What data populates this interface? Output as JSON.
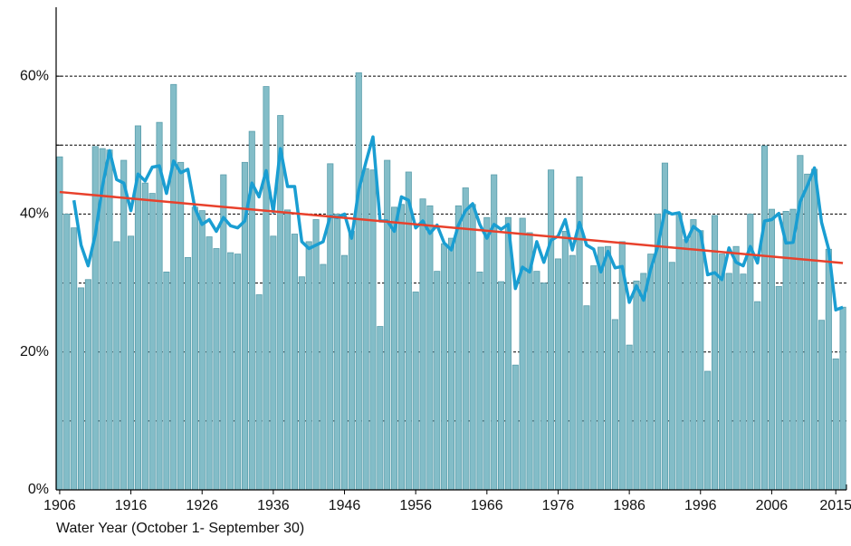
{
  "chart_data": {
    "type": "bar",
    "x_label": "Water Year (October 1- September 30)",
    "x": [
      1906,
      1907,
      1908,
      1909,
      1910,
      1911,
      1912,
      1913,
      1914,
      1915,
      1916,
      1917,
      1918,
      1919,
      1920,
      1921,
      1922,
      1923,
      1924,
      1925,
      1926,
      1927,
      1928,
      1929,
      1930,
      1931,
      1932,
      1933,
      1934,
      1935,
      1936,
      1937,
      1938,
      1939,
      1940,
      1941,
      1942,
      1943,
      1944,
      1945,
      1946,
      1947,
      1948,
      1949,
      1950,
      1951,
      1952,
      1953,
      1954,
      1955,
      1956,
      1957,
      1958,
      1959,
      1960,
      1961,
      1962,
      1963,
      1964,
      1965,
      1966,
      1967,
      1968,
      1969,
      1970,
      1971,
      1972,
      1973,
      1974,
      1975,
      1976,
      1977,
      1978,
      1979,
      1980,
      1981,
      1982,
      1983,
      1984,
      1985,
      1986,
      1987,
      1988,
      1989,
      1990,
      1991,
      1992,
      1993,
      1994,
      1995,
      1996,
      1997,
      1998,
      1999,
      2000,
      2001,
      2002,
      2003,
      2004,
      2005,
      2006,
      2007,
      2008,
      2009,
      2010,
      2011,
      2012,
      2013,
      2014,
      2015,
      2016
    ],
    "values": [
      48.3,
      40,
      38,
      29.3,
      30.5,
      49.8,
      49.5,
      49.3,
      36,
      47.8,
      36.8,
      52.8,
      44.5,
      43,
      53.3,
      31.6,
      58.8,
      47.5,
      33.7,
      41,
      40.5,
      36.7,
      35,
      45.7,
      34.4,
      34.2,
      47.5,
      52,
      28.3,
      58.5,
      36.8,
      54.3,
      40.6,
      37.1,
      30.9,
      36,
      39.2,
      32.7,
      47.3,
      40,
      34,
      37.5,
      60.5,
      46.6,
      46.4,
      23.7,
      47.8,
      41,
      41.4,
      46.1,
      28.7,
      42.2,
      41.2,
      31.7,
      35.7,
      36.5,
      41.2,
      43.8,
      41.4,
      31.6,
      39.5,
      45.7,
      30.2,
      39.5,
      18.1,
      39.4,
      37.3,
      31.7,
      30,
      46.4,
      33.5,
      37.5,
      34,
      45.4,
      26.7,
      32.5,
      35.2,
      35.3,
      24.7,
      36,
      21,
      30.3,
      31.4,
      34.2,
      40,
      47.4,
      33,
      40.1,
      36.3,
      39.2,
      37.6,
      17.2,
      39.8,
      34.2,
      31.4,
      35.3,
      31.3,
      40,
      27.3,
      49.9,
      40.7,
      29.5,
      40.4,
      40.7,
      48.5,
      45.8,
      46.5,
      24.6,
      34.9,
      19,
      26.5
    ],
    "color": "#83bdc8",
    "moving_average": {
      "color": "#1a9ed2",
      "values": [
        null,
        null,
        42,
        35.5,
        32.5,
        37,
        44,
        49.2,
        45,
        44.5,
        40.5,
        45.8,
        44.8,
        46.8,
        47,
        43,
        47.7,
        46,
        46.5,
        40.8,
        38.5,
        39.2,
        37.5,
        39.5,
        38.3,
        38,
        39,
        44.5,
        42.5,
        46.3,
        40.3,
        49.5,
        44,
        44,
        36,
        35,
        35.5,
        36,
        39.7,
        39.5,
        40,
        36.5,
        43.5,
        47.5,
        51.2,
        39,
        39,
        37.5,
        42.5,
        42,
        38,
        39,
        37.2,
        38.4,
        35.8,
        34.8,
        38.4,
        40.5,
        41.5,
        38.5,
        36.5,
        38.5,
        37.8,
        38.5,
        29.2,
        32.3,
        31.6,
        36,
        33,
        36.2,
        36.8,
        39.2,
        34.8,
        38.8,
        35.5,
        34.9,
        31.6,
        34.6,
        32.2,
        32.4,
        27.2,
        29.6,
        27.5,
        32,
        35.3,
        40.5,
        40,
        40.2,
        36,
        38.2,
        37.4,
        31.2,
        31.5,
        30.5,
        35.1,
        33,
        32.5,
        35.3,
        32.9,
        39,
        39.2,
        40.1,
        35.8,
        35.9,
        41.8,
        44.1,
        46.7,
        38.8,
        34.9,
        26.1,
        26.5
      ]
    },
    "trend": {
      "color": "#e8412c",
      "x": [
        1906,
        2016
      ],
      "values": [
        43.2,
        32.9
      ]
    },
    "xlim": [
      1905.5,
      2016.5
    ],
    "xticks": [
      1906,
      1916,
      1926,
      1936,
      1946,
      1956,
      1966,
      1976,
      1986,
      1996,
      2006,
      2015
    ],
    "ylim": [
      0,
      70
    ],
    "yticks": [
      {
        "value": 0,
        "label": "0%"
      },
      {
        "value": 20,
        "label": "20%"
      },
      {
        "value": 40,
        "label": "40%"
      },
      {
        "value": 60,
        "label": "60%"
      }
    ],
    "minor_yticks": [
      10,
      30,
      50
    ],
    "grid": true
  }
}
